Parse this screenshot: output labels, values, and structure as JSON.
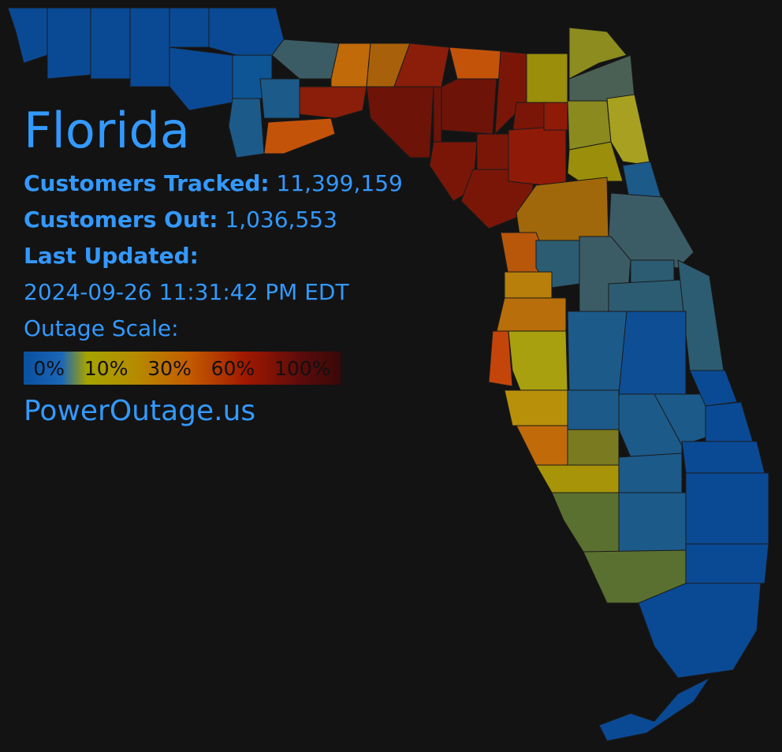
{
  "state": "Florida",
  "tracked_label": "Customers Tracked:",
  "tracked_value": "11,399,159",
  "out_label": "Customers Out:",
  "out_value": "1,036,553",
  "updated_label": "Last Updated:",
  "updated_value": "2024-09-26 11:31:42 PM EDT",
  "scale_label": "Outage Scale:",
  "scale_ticks": [
    "0%",
    "10%",
    "30%",
    "60%",
    "100%"
  ],
  "site": "PowerOutage.us",
  "colors": {
    "text": "#3399ff",
    "background": "#131313",
    "outage_0": "#0a4fa0",
    "outage_10": "#a6a300",
    "outage_30": "#c45c00",
    "outage_60": "#a01800",
    "outage_100": "#4a0505"
  }
}
